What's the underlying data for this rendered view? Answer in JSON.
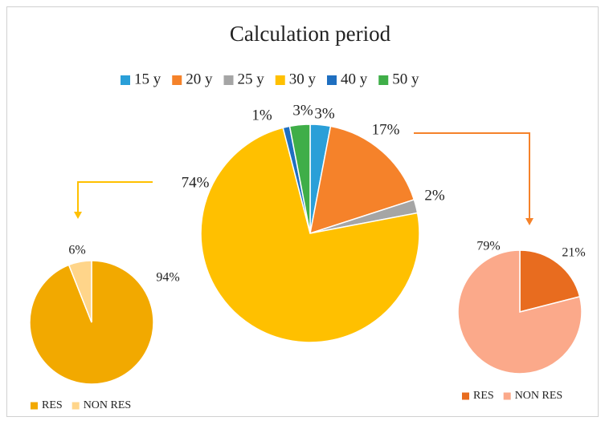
{
  "chart_data": [
    {
      "type": "pie",
      "title": "Calculation period",
      "categories": [
        "15 y",
        "20 y",
        "25 y",
        "30 y",
        "40 y",
        "50 y"
      ],
      "values": [
        3,
        17,
        2,
        74,
        1,
        3
      ],
      "value_labels": [
        "3%",
        "17%",
        "2%",
        "74%",
        "1%",
        "3%"
      ],
      "colors": [
        "#2a9fd8",
        "#f5822a",
        "#a5a5a5",
        "#ffc000",
        "#1f6fc0",
        "#3fae48"
      ]
    },
    {
      "type": "pie",
      "categories": [
        "RES",
        "NON RES"
      ],
      "values": [
        94,
        6
      ],
      "value_labels": [
        "94%",
        "6%"
      ],
      "colors": [
        "#f2a900",
        "#ffd58a"
      ]
    },
    {
      "type": "pie",
      "categories": [
        "RES",
        "NON RES"
      ],
      "values": [
        21,
        79
      ],
      "value_labels": [
        "21%",
        "79%"
      ],
      "colors": [
        "#e86c1f",
        "#fba98a"
      ]
    }
  ]
}
